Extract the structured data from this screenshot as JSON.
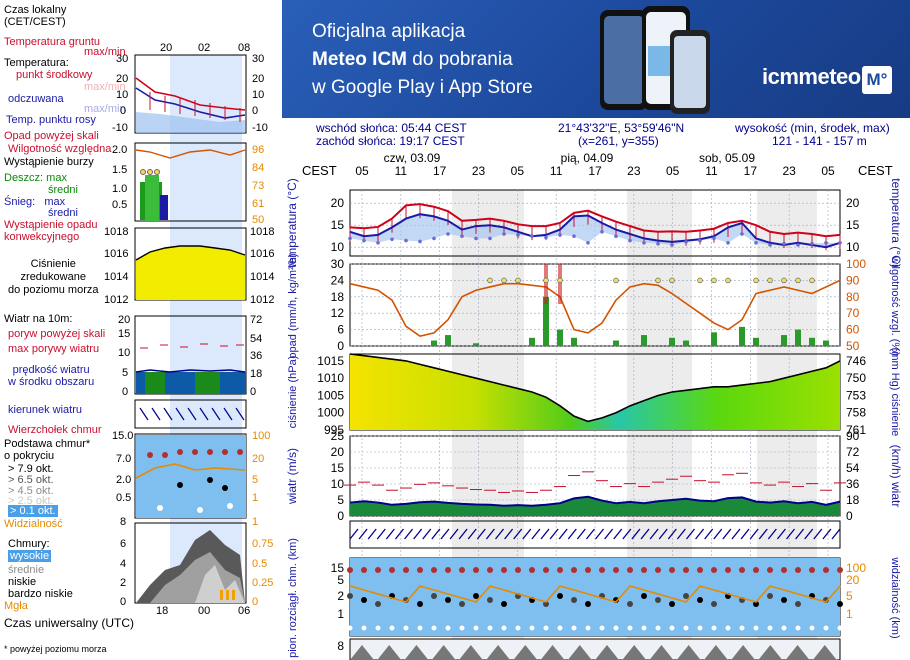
{
  "banner": {
    "line1": "Oficjalna aplikacja",
    "line2_bold": "Meteo ICM",
    "line2_rest": " do pobrania",
    "line3": "w Google Play i App Store",
    "logo": "icmmeteo",
    "logo_box": "M°"
  },
  "info": {
    "sunrise": "wschód słońca: 05:44 CEST",
    "sunset": "zachód słońca: 19:17 CEST",
    "coords": "21°43'32\"E, 53°59'46\"N",
    "grid": "(x=261,  y=355)",
    "height_label": "wysokość (min, środek, max)",
    "height_values": "121 - 141 - 157 m"
  },
  "legend": {
    "time_local": "Czas lokalny\n(CET/CEST)",
    "time_ticks_top": [
      "20",
      "02",
      "08"
    ],
    "ground_temp": "Temperatura gruntu",
    "ground_temp_sub": "max/min",
    "temperature": "Temperatura:",
    "temp_mid": "punkt środkowy",
    "temp_max": "max/min",
    "feels": "odczuwana",
    "feels_sub": "max/min",
    "dew": "Temp. punktu rosy",
    "temp_ticks": [
      "30",
      "20",
      "10",
      "0",
      "-10"
    ],
    "temp_right": [
      "30",
      "20",
      "10",
      "0",
      "-10"
    ],
    "precip_above": "Opad powyżej skali",
    "humidity": "Wilgotność względna",
    "storm": "Wystąpienie burzy",
    "rain_max": "Deszcz: max",
    "rain_avg": "średni",
    "snow_max": "Śnieg:   max",
    "snow_avg": "średni",
    "conv_precip": "Wystąpienie opadu\nkonwekcyjnego",
    "precip_ticks": [
      "2.0",
      "1.5",
      "1.0",
      "0.5"
    ],
    "hum_ticks": [
      "96",
      "84",
      "73",
      "61",
      "50"
    ],
    "pressure": "Ciśnienie\nzredukowane\ndo poziomu morza",
    "press_ticks": [
      "1018",
      "1016",
      "1014",
      "1012"
    ],
    "wind_10m": "Wiatr na 10m:",
    "gusts_above": "poryw powyżej skali",
    "gusts_max": "max porywy wiatru",
    "wind_avg": "prędkość wiatru\nw środku obszaru",
    "wind_ticks": [
      "20",
      "15",
      "10",
      "5",
      "0"
    ],
    "wind_right": [
      "72",
      "54",
      "36",
      "18",
      "0"
    ],
    "wind_dir": "kierunek wiatru",
    "cloud_top": "Wierzchołek chmur",
    "cloud_base": "Podstawa chmur*\no pokryciu",
    "okt": [
      "> 7.9 okt.",
      "> 6.5 okt.",
      "> 4.5 okt.",
      "> 2.5 okt.",
      "> 0.1 okt."
    ],
    "cb_ticks": [
      "15.0",
      "7.0",
      "2.0",
      "0.5"
    ],
    "cb_right": [
      "100",
      "20",
      "5",
      "1"
    ],
    "visibility": "Widzialność",
    "vis_left": "8",
    "vis_right": "1",
    "clouds": "Chmury:",
    "cl_high": "wysokie",
    "cl_mid": "średnie",
    "cl_low": "niskie",
    "cl_vlow": "bardzo niskie",
    "fog": "Mgła",
    "cl_ticks": [
      "6",
      "4",
      "2",
      "0"
    ],
    "cl_right": [
      "0.75",
      "0.5",
      "0.25",
      "0"
    ],
    "utc": "Czas uniwersalny (UTC)",
    "utc_ticks": [
      "18",
      "00",
      "06"
    ],
    "footnote": "* powyżej poziomu morza"
  },
  "chart_data": {
    "type": "line",
    "days": [
      "czw, 03.09",
      "pią, 04.09",
      "sob, 05.09"
    ],
    "hours": [
      "05",
      "11",
      "17",
      "23",
      "05",
      "11",
      "17",
      "23",
      "05",
      "11",
      "17",
      "23",
      "05"
    ],
    "tz_label": "CEST",
    "panels": {
      "temperature": {
        "ylabel": "temperatura (°C)",
        "yticks": [
          10,
          15,
          20
        ],
        "ylim": [
          8,
          23
        ],
        "series": [
          {
            "name": "max/min",
            "color": "#d0021b",
            "values": [
              14.5,
              14.3,
              14.6,
              16.5,
              19.5,
              19.8,
              19.2,
              18.2,
              16.0,
              16.2,
              16.5,
              16.0,
              15.2,
              14.8,
              14.8,
              15.5,
              17.8,
              18.3,
              17.0,
              15.8,
              14.8,
              13.8,
              13.5,
              13.6,
              13.5,
              13.8,
              14.2,
              15.5,
              16.0,
              15.0,
              13.5,
              13.0,
              13.3,
              13.0,
              12.5,
              12.8
            ]
          },
          {
            "name": "punkt środkowy",
            "color": "#1a1aa6",
            "values": [
              13.5,
              12.5,
              12.8,
              14.5,
              16.5,
              17.5,
              17.0,
              16.0,
              14.0,
              14.8,
              15.0,
              14.5,
              13.5,
              12.5,
              12.8,
              14.0,
              17.0,
              17.2,
              15.5,
              14.0,
              13.0,
              12.0,
              11.5,
              11.2,
              11.5,
              11.8,
              12.5,
              14.5,
              15.5,
              12.0,
              11.0,
              10.5,
              11.0,
              10.5,
              10.0,
              11.0
            ]
          },
          {
            "name": "Temp. punktu rosy",
            "color": "#6b6bd6",
            "values": [
              12.0,
              11.5,
              11.0,
              11.8,
              11.5,
              11.3,
              12.0,
              13.0,
              12.5,
              12.0,
              12.0,
              13.0,
              12.8,
              12.5,
              12.2,
              12.8,
              12.5,
              11.0,
              13.5,
              12.5,
              11.5,
              11.0,
              10.8,
              10.5,
              11.2,
              11.5,
              12.0,
              11.0,
              13.0,
              11.0,
              10.5,
              10.8,
              10.5,
              10.8,
              11.0,
              11.0
            ]
          }
        ]
      },
      "precipitation": {
        "ylabel": "opad (mm/h, kg/m²/h)",
        "yticks": [
          0,
          6,
          12,
          18,
          24,
          30
        ],
        "y2label": "wilgotność wzgl. (%)",
        "y2ticks": [
          50,
          60,
          70,
          80,
          90,
          100
        ],
        "humidity": [
          88,
          86,
          84,
          78,
          62,
          56,
          58,
          66,
          80,
          84,
          86,
          88,
          88,
          87,
          86,
          80,
          60,
          58,
          64,
          78,
          86,
          88,
          87,
          82,
          76,
          70,
          64,
          60,
          66,
          82,
          84,
          86,
          84,
          82,
          86,
          90
        ]
      },
      "pressure": {
        "ylabel": "ciśnienie (hPa)",
        "yticks": [
          995,
          1000,
          1005,
          1010,
          1015
        ],
        "y2label": "(mm Hg) ciśnienie",
        "y2ticks": [
          746,
          750,
          753,
          758,
          761
        ],
        "values": [
          1017,
          1016.5,
          1016,
          1015.5,
          1015,
          1014,
          1013,
          1012,
          1011,
          1010,
          1009,
          1008,
          1007,
          1006,
          1004.5,
          1002,
          999,
          997.5,
          998.5,
          1000,
          1002,
          1003.5,
          1005,
          1006,
          1006.5,
          1007,
          1007.5,
          1007.5,
          1008,
          1008.5,
          1009,
          1010,
          1011,
          1012,
          1013,
          1015
        ]
      },
      "wind": {
        "ylabel": "wiatr (m/s)",
        "yticks": [
          0,
          5,
          10,
          15,
          20,
          25
        ],
        "y2label": "(km/h) wiatr",
        "y2ticks": [
          0,
          18,
          36,
          54,
          72,
          90
        ],
        "values": [
          4.2,
          4.6,
          4.2,
          3.5,
          3.8,
          4.3,
          4.5,
          4.1,
          3.8,
          3.6,
          3.5,
          3.2,
          3.4,
          3.2,
          3.5,
          4.0,
          5.5,
          6.0,
          4.8,
          4.0,
          4.4,
          4.0,
          4.6,
          5.0,
          5.4,
          4.8,
          4.6,
          5.6,
          5.8,
          4.5,
          4.2,
          4.6,
          4.0,
          4.4,
          3.5,
          4.5
        ]
      },
      "clouds": {
        "ylabel": "pion. rozciągł. chm. (km)",
        "yticks": [
          1,
          2,
          5,
          15.0
        ],
        "y2label": "widzialność (km)",
        "y2ticks": [
          1,
          5,
          20,
          100
        ]
      }
    }
  }
}
